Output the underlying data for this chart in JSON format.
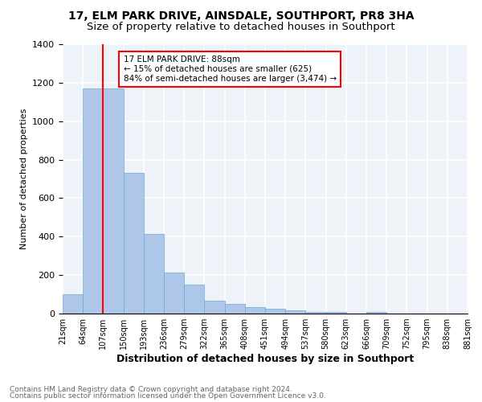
{
  "title1": "17, ELM PARK DRIVE, AINSDALE, SOUTHPORT, PR8 3HA",
  "title2": "Size of property relative to detached houses in Southport",
  "xlabel": "Distribution of detached houses by size in Southport",
  "ylabel": "Number of detached properties",
  "footnote1": "Contains HM Land Registry data © Crown copyright and database right 2024.",
  "footnote2": "Contains public sector information licensed under the Open Government Licence v3.0.",
  "bin_labels": [
    "21sqm",
    "64sqm",
    "107sqm",
    "150sqm",
    "193sqm",
    "236sqm",
    "279sqm",
    "322sqm",
    "365sqm",
    "408sqm",
    "451sqm",
    "494sqm",
    "537sqm",
    "580sqm",
    "623sqm",
    "666sqm",
    "709sqm",
    "752sqm",
    "795sqm",
    "838sqm",
    "881sqm"
  ],
  "values": [
    100,
    1170,
    1170,
    730,
    415,
    215,
    150,
    65,
    50,
    35,
    25,
    15,
    10,
    10,
    0,
    10,
    0,
    0,
    0,
    0
  ],
  "bar_color": "#aec6e8",
  "bar_edge_color": "#6aaad4",
  "vline_pos": 1.5,
  "vline_color": "red",
  "annotation_text": "17 ELM PARK DRIVE: 88sqm\n← 15% of detached houses are smaller (625)\n84% of semi-detached houses are larger (3,474) →",
  "ylim": [
    0,
    1400
  ],
  "yticks": [
    0,
    200,
    400,
    600,
    800,
    1000,
    1200,
    1400
  ],
  "background_color": "#eef2f9",
  "grid_color": "#ffffff",
  "title_fontsize": 10,
  "subtitle_fontsize": 9.5
}
